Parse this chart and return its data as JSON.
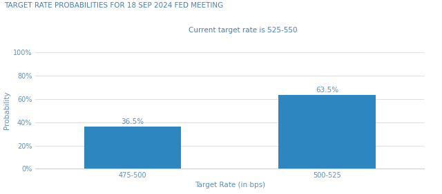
{
  "title": "TARGET RATE PROBABILITIES FOR 18 SEP 2024 FED MEETING",
  "subtitle": "Current target rate is 525-550",
  "categories": [
    "475-500",
    "500-525"
  ],
  "values": [
    36.5,
    63.5
  ],
  "bar_color": "#2E86C1",
  "xlabel": "Target Rate (in bps)",
  "ylabel": "Probability",
  "ylim": [
    0,
    100
  ],
  "yticks": [
    0,
    20,
    40,
    60,
    80,
    100
  ],
  "ytick_labels": [
    "0%",
    "20%",
    "40%",
    "60%",
    "80%",
    "100%"
  ],
  "background_color": "#FFFFFF",
  "grid_color": "#D0D0D0",
  "title_color": "#4A7DB5",
  "subtitle_color": "#4A7DB5",
  "axis_label_color": "#6090B8",
  "tick_label_color": "#6090B8",
  "bar_label_color": "#6090B8",
  "title_fontsize": 7.5,
  "subtitle_fontsize": 7.5,
  "axis_label_fontsize": 7.5,
  "tick_fontsize": 7.0,
  "bar_label_fontsize": 7.5,
  "bar_width": 0.25
}
